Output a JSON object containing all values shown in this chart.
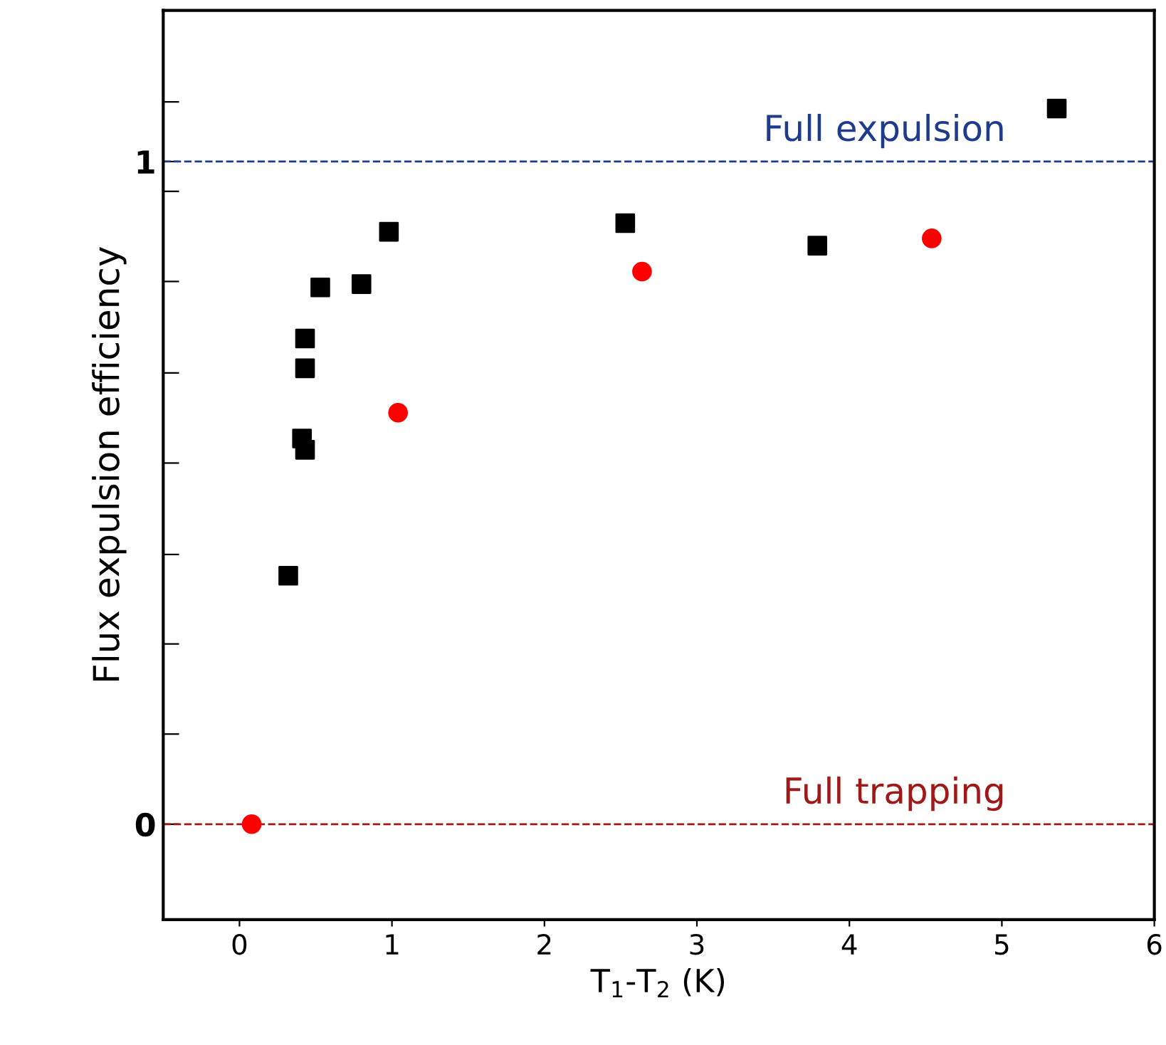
{
  "chart_data": {
    "type": "scatter",
    "xlabel": "T$_{1}$-T$_{2}$ (K)",
    "ylabel": "Flux expulsion efficiency",
    "xlim": [
      -0.5,
      6
    ],
    "xticks": [
      0,
      1,
      2,
      3,
      4,
      5,
      6
    ],
    "ylim": [
      -0.144,
      1.228
    ],
    "yticks": [
      {
        "value": 0,
        "label": "0"
      },
      {
        "value": 0.136,
        "label": null
      },
      {
        "value": 0.272,
        "label": null
      },
      {
        "value": 0.407,
        "label": null
      },
      {
        "value": 0.545,
        "label": null
      },
      {
        "value": 0.681,
        "label": null
      },
      {
        "value": 0.819,
        "label": null
      },
      {
        "value": 0.955,
        "label": null
      },
      {
        "value": 1,
        "label": "1"
      },
      {
        "value": 1.09,
        "label": null
      }
    ],
    "grid": false,
    "legend": false,
    "series": [
      {
        "color": "#000000",
        "marker": "square",
        "x": [
          0.32,
          0.41,
          0.43,
          0.43,
          0.43,
          0.53,
          0.8,
          0.98,
          2.53,
          3.79,
          5.36
        ],
        "values": [
          0.375,
          0.582,
          0.565,
          0.688,
          0.733,
          0.81,
          0.815,
          0.894,
          0.907,
          0.873,
          1.08
        ]
      },
      {
        "color": "#ff0000",
        "marker": "circle",
        "x": [
          0.08,
          1.04,
          2.64,
          4.54
        ],
        "values": [
          0.0,
          0.621,
          0.834,
          0.884
        ]
      }
    ],
    "ref_lines": [
      {
        "axis": "y",
        "value": 1,
        "label": "Full expulsion",
        "color": "#1f3c8c",
        "line_style": "dashed"
      },
      {
        "axis": "y",
        "value": 0,
        "label": "Full trapping",
        "color": "#a01818",
        "line_style": "dashed"
      }
    ]
  }
}
